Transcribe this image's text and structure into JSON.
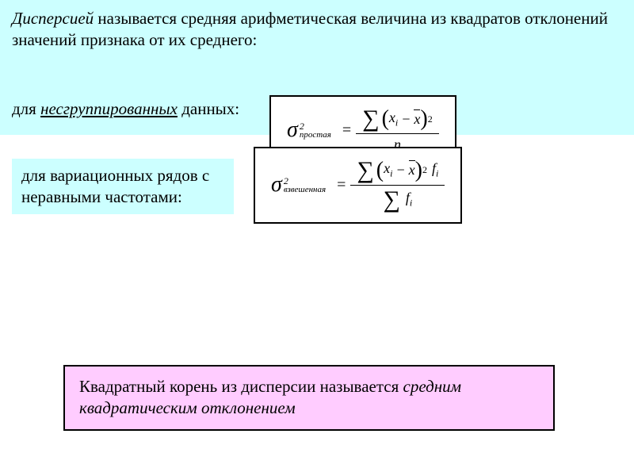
{
  "topSection": {
    "definitionHtml": "<span class=\"term\">Дисперсией</span> называется средняя арифметическая величина из квадратов отклонений значений признака от их среднего:",
    "ungroupedLabelHtml": "для <span class=\"underline\">несгруппированных</span> данных:"
  },
  "formula1": {
    "sigmaSubscript": "простая",
    "sigmaSuperscript": "2",
    "xVar": "x",
    "xSub": "i",
    "xbar": "x",
    "exponent": "2",
    "denominator": "n"
  },
  "varSection": {
    "label": "для вариационных рядов с неравными частотами:"
  },
  "formula2": {
    "sigmaSubscript": "взвешенная",
    "sigmaSuperscript": "2",
    "xVar": "x",
    "xSub": "i",
    "xbar": "x",
    "exponent": "2",
    "fVar": "f",
    "fSub": "i"
  },
  "bottomSection": {
    "textHtml": "Квадратный корень из дисперсии называется <span class=\"italic\">средним квадратическим отклонением</span>"
  },
  "colors": {
    "cyanBg": "#ccffff",
    "pinkBg": "#ffccff",
    "border": "#000000",
    "text": "#000000",
    "pageBg": "#ffffff"
  }
}
